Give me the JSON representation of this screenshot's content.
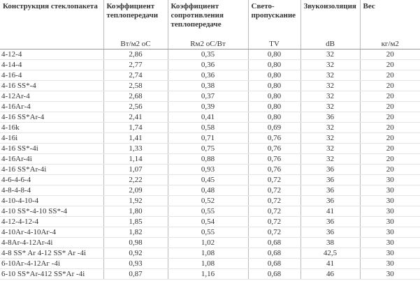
{
  "table": {
    "headers": [
      "Конструкция стеклопакета",
      "Коэффициент теплопередачи",
      "Коэффициент сопротивления теплопередаче",
      "Свето-пропускание",
      "Звукоизоляция",
      "Вес"
    ],
    "units": [
      "Вт/м2 оС",
      "Rм2 оС/Вт",
      "TV",
      "dB",
      "кг/м2"
    ],
    "rows": [
      [
        "4-12-4",
        "2,86",
        "0,35",
        "0,80",
        "32",
        "20"
      ],
      [
        "4-14-4",
        "2,77",
        "0,36",
        "0,80",
        "32",
        "20"
      ],
      [
        "4-16-4",
        "2,74",
        "0,36",
        "0,80",
        "32",
        "20"
      ],
      [
        "4-16 SS*-4",
        "2,58",
        "0,38",
        "0,80",
        "32",
        "20"
      ],
      [
        "4-12Ar-4",
        "2,68",
        "0,37",
        "0,80",
        "32",
        "20"
      ],
      [
        "4-16Аг-4",
        "2,56",
        "0,39",
        "0,80",
        "32",
        "20"
      ],
      [
        "4-16 SS*Ar-4",
        "2,41",
        "0,41",
        "0,80",
        "36",
        "20"
      ],
      [
        "4-16k",
        "1,74",
        "0,58",
        "0,69",
        "32",
        "20"
      ],
      [
        "4-16i",
        "1,41",
        "0,71",
        "0,76",
        "32",
        "20"
      ],
      [
        "4-16 SS*-4i",
        "1,33",
        "0,75",
        "0,76",
        "32",
        "20"
      ],
      [
        "4-16Ar-4i",
        "1,14",
        "0,88",
        "0,76",
        "32",
        "20"
      ],
      [
        "4-16 SS*Ar-4i",
        "1,07",
        "0,93",
        "0,76",
        "36",
        "20"
      ],
      [
        "4-6-4-6-4",
        "2,22",
        "0,45",
        "0,72",
        "36",
        "30"
      ],
      [
        "4-8-4-8-4",
        "2,09",
        "0,48",
        "0,72",
        "36",
        "30"
      ],
      [
        "4-10-4-10-4",
        "1,92",
        "0,52",
        "0,72",
        "36",
        "30"
      ],
      [
        "4-10 SS*-4-10 SS*-4",
        "1,80",
        "0,55",
        "0,72",
        "41",
        "30"
      ],
      [
        "4-12-4-12-4",
        "1,85",
        "0,54",
        "0,72",
        "36",
        "30"
      ],
      [
        "4-10Аг-4-10Аг-4",
        "1,82",
        "0,55",
        "0,72",
        "36",
        "30"
      ],
      [
        "4-8Ar-4-12Ar-4i",
        "0,98",
        "1,02",
        "0,68",
        "38",
        "30"
      ],
      [
        "4-8 SS* Ar 4-12 SS* Ar -4i",
        "0,92",
        "1,08",
        "0,68",
        "42,5",
        "30"
      ],
      [
        "6-10Аг-4-12Аг -4i",
        "0,93",
        "1,08",
        "0,68",
        "41",
        "30"
      ],
      [
        "6-10 SS*Ar-412 SS*Ar -4i",
        "0,87",
        "1,16",
        "0,68",
        "46",
        "30"
      ]
    ]
  }
}
